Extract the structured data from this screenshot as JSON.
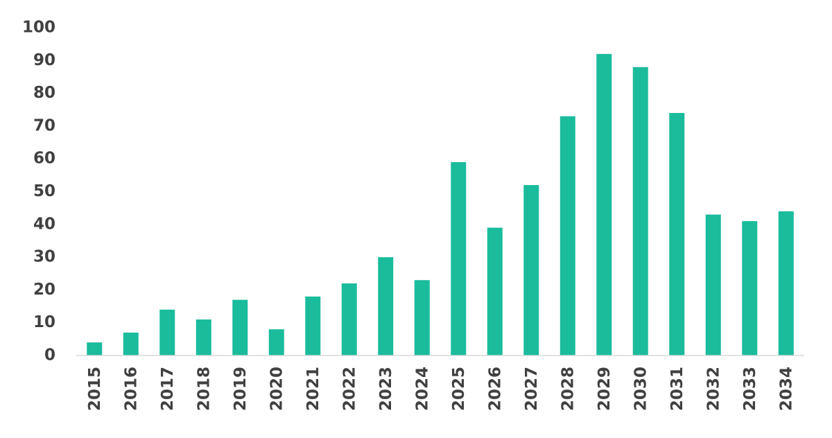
{
  "chart_data": {
    "type": "bar",
    "categories": [
      "2015",
      "2016",
      "2017",
      "2018",
      "2019",
      "2020",
      "2021",
      "2022",
      "2023",
      "2024",
      "2025",
      "2026",
      "2027",
      "2028",
      "2029",
      "2030",
      "2031",
      "2032",
      "2033",
      "2034"
    ],
    "values": [
      4,
      7,
      14,
      11,
      17,
      8,
      18,
      22,
      30,
      23,
      59,
      39,
      52,
      73,
      92,
      88,
      74,
      43,
      41,
      44
    ],
    "color": "#1abc9c",
    "ylim": [
      0,
      100
    ],
    "yticks": [
      0,
      10,
      20,
      30,
      40,
      50,
      60,
      70,
      80,
      90,
      100
    ],
    "grid": false
  }
}
